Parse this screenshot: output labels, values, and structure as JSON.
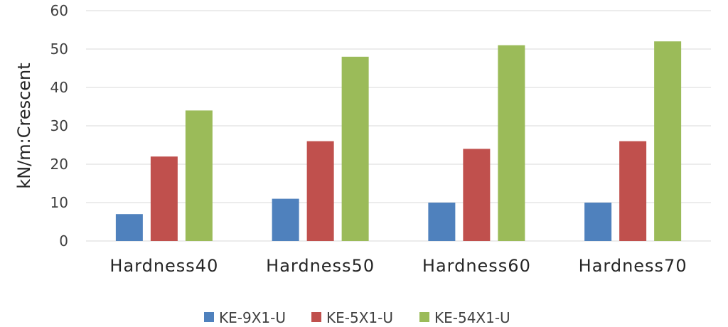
{
  "chart_data": {
    "type": "bar",
    "title": "",
    "xlabel": "",
    "ylabel": "kN/m:Crescent",
    "ylim": [
      0,
      60
    ],
    "yticks": [
      0,
      10,
      20,
      30,
      40,
      50,
      60
    ],
    "grid": true,
    "legend_position": "bottom",
    "categories": [
      "Hardness40",
      "Hardness50",
      "Hardness60",
      "Hardness70"
    ],
    "series": [
      {
        "name": "KE-9X1-U",
        "color": "#4f81bd",
        "values": [
          7,
          11,
          10,
          10
        ]
      },
      {
        "name": "KE-5X1-U",
        "color": "#c0504d",
        "values": [
          22,
          26,
          24,
          26
        ]
      },
      {
        "name": "KE-54X1-U",
        "color": "#9bbb59",
        "values": [
          34,
          48,
          51,
          52
        ]
      }
    ]
  }
}
